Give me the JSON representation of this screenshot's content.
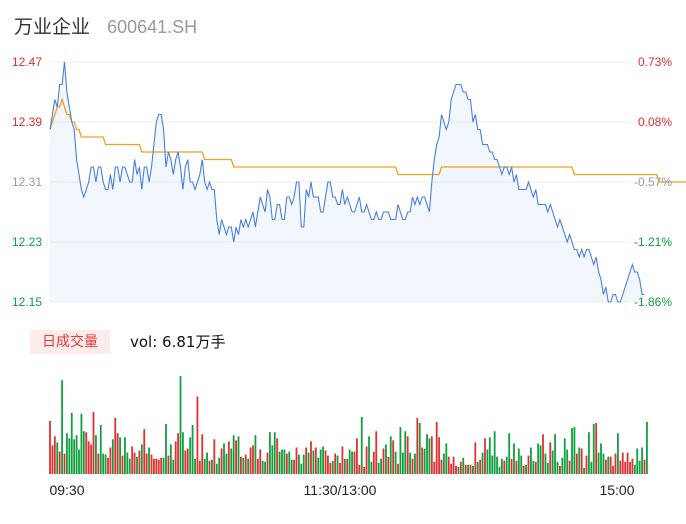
{
  "header": {
    "name": "万业企业",
    "code": "600641.SH"
  },
  "volume_panel": {
    "mode_label": "日成交量",
    "vol_label": "vol: 6.81万手"
  },
  "colors": {
    "price_line": "#4a7fe0",
    "avg_line": "#f0a020",
    "up": "#e03030",
    "down": "#10a040",
    "grid": "#eeeeee"
  },
  "chart_data": [
    {
      "type": "line",
      "title": "",
      "y_ticks": [
        "12.47",
        "12.39",
        "12.31",
        "12.23",
        "12.15"
      ],
      "pct_ticks": [
        "0.73%",
        "0.08%",
        "-0.57%",
        "-1.21%",
        "-1.86%"
      ],
      "x_ticks": [
        "09:30",
        "11:30/13:00",
        "15:00"
      ],
      "ylim": [
        12.15,
        12.47
      ],
      "series": [
        {
          "values": [
            12.38,
            12.4,
            12.42,
            12.41,
            12.44,
            12.44,
            12.47,
            12.43,
            12.41,
            12.39,
            12.38,
            12.34,
            12.32,
            12.3,
            12.29,
            12.3,
            12.31,
            12.33,
            12.33,
            12.31,
            12.33,
            12.33,
            12.31,
            12.3,
            12.3,
            12.32,
            12.3,
            12.33,
            12.33,
            12.31,
            12.33,
            12.33,
            12.32,
            12.31,
            12.31,
            12.34,
            12.32,
            12.33,
            12.3,
            12.33,
            12.33,
            12.31,
            12.33,
            12.36,
            12.39,
            12.4,
            12.4,
            12.38,
            12.33,
            12.35,
            12.34,
            12.32,
            12.34,
            12.35,
            12.33,
            12.3,
            12.33,
            12.34,
            12.31,
            12.31,
            12.3,
            12.31,
            12.32,
            12.34,
            12.31,
            12.3,
            12.31,
            12.3,
            12.3,
            12.26,
            12.24,
            12.26,
            12.25,
            12.24,
            12.25,
            12.25,
            12.23,
            12.25,
            12.24,
            12.26,
            12.25,
            12.26,
            12.25,
            12.26,
            12.27,
            12.25,
            12.27,
            12.29,
            12.28,
            12.27,
            12.3,
            12.29,
            12.26,
            12.26,
            12.28,
            12.28,
            12.26,
            12.26,
            12.29,
            12.29,
            12.28,
            12.29,
            12.31,
            12.31,
            12.25,
            12.25,
            12.3,
            12.29,
            12.31,
            12.29,
            12.29,
            12.29,
            12.27,
            12.27,
            12.29,
            12.31,
            12.31,
            12.29,
            12.29,
            12.28,
            12.28,
            12.3,
            12.28,
            12.29,
            12.28,
            12.27,
            12.27,
            12.28,
            12.29,
            12.27,
            12.27,
            12.28,
            12.27,
            12.26,
            12.26,
            12.27,
            12.26,
            12.26,
            12.27,
            12.27,
            12.27,
            12.26,
            12.26,
            12.26,
            12.28,
            12.27,
            12.26,
            12.26,
            12.27,
            12.27,
            12.29,
            12.28,
            12.29,
            12.28,
            12.29,
            12.29,
            12.28,
            12.27,
            12.31,
            12.34,
            12.36,
            12.37,
            12.4,
            12.39,
            12.38,
            12.39,
            12.42,
            12.43,
            12.44,
            12.44,
            12.44,
            12.43,
            12.43,
            12.42,
            12.42,
            12.39,
            12.4,
            12.38,
            12.38,
            12.36,
            12.36,
            12.36,
            12.35,
            12.35,
            12.34,
            12.34,
            12.33,
            12.32,
            12.33,
            12.33,
            12.32,
            12.33,
            12.31,
            12.32,
            12.3,
            12.3,
            12.3,
            12.3,
            12.31,
            12.3,
            12.29,
            12.3,
            12.28,
            12.28,
            12.28,
            12.28,
            12.27,
            12.28,
            12.27,
            12.26,
            12.25,
            12.26,
            12.25,
            12.24,
            12.23,
            12.24,
            12.23,
            12.22,
            12.22,
            12.21,
            12.22,
            12.21,
            12.22,
            12.22,
            12.21,
            12.2,
            12.21,
            12.19,
            12.18,
            12.16,
            12.17,
            12.15,
            12.15,
            12.16,
            12.16,
            12.15,
            12.15,
            12.16,
            12.17,
            12.18,
            12.19,
            12.2,
            12.19,
            12.19,
            12.18,
            12.16,
            12.16
          ]
        },
        {
          "values": [
            12.38,
            12.39,
            12.4,
            12.41,
            12.41,
            12.42,
            12.41,
            12.4,
            12.4,
            12.39,
            12.39,
            12.38,
            12.38,
            12.37,
            12.37,
            12.37,
            12.37,
            12.37,
            12.37,
            12.37,
            12.37,
            12.37,
            12.37,
            12.36,
            12.36,
            12.36,
            12.36,
            12.36,
            12.36,
            12.36,
            12.36,
            12.36,
            12.36,
            12.36,
            12.36,
            12.36,
            12.36,
            12.36,
            12.35,
            12.35,
            12.35,
            12.35,
            12.35,
            12.35,
            12.35,
            12.35,
            12.35,
            12.35,
            12.35,
            12.35,
            12.35,
            12.35,
            12.35,
            12.35,
            12.35,
            12.35,
            12.35,
            12.35,
            12.35,
            12.35,
            12.35,
            12.35,
            12.35,
            12.35,
            12.34,
            12.34,
            12.34,
            12.34,
            12.34,
            12.34,
            12.34,
            12.34,
            12.34,
            12.34,
            12.34,
            12.34,
            12.33,
            12.33,
            12.33,
            12.33,
            12.33,
            12.33,
            12.33,
            12.33,
            12.33,
            12.33,
            12.33,
            12.33,
            12.33,
            12.33,
            12.33,
            12.33,
            12.33,
            12.33,
            12.33,
            12.33,
            12.33,
            12.33,
            12.33,
            12.33,
            12.33,
            12.33,
            12.33,
            12.33,
            12.33,
            12.33,
            12.33,
            12.33,
            12.33,
            12.33,
            12.33,
            12.33,
            12.33,
            12.33,
            12.33,
            12.33,
            12.33,
            12.33,
            12.33,
            12.33,
            12.33,
            12.33,
            12.33,
            12.33,
            12.33,
            12.33,
            12.33,
            12.33,
            12.33,
            12.33,
            12.33,
            12.33,
            12.33,
            12.33,
            12.33,
            12.33,
            12.33,
            12.33,
            12.33,
            12.33,
            12.33,
            12.33,
            12.33,
            12.33,
            12.32,
            12.32,
            12.32,
            12.32,
            12.32,
            12.32,
            12.32,
            12.32,
            12.32,
            12.32,
            12.32,
            12.32,
            12.32,
            12.32,
            12.32,
            12.32,
            12.32,
            12.32,
            12.33,
            12.33,
            12.33,
            12.33,
            12.33,
            12.33,
            12.33,
            12.33,
            12.33,
            12.33,
            12.33,
            12.33,
            12.33,
            12.33,
            12.33,
            12.33,
            12.33,
            12.33,
            12.33,
            12.33,
            12.33,
            12.33,
            12.33,
            12.33,
            12.33,
            12.33,
            12.33,
            12.33,
            12.33,
            12.33,
            12.33,
            12.33,
            12.33,
            12.33,
            12.33,
            12.33,
            12.33,
            12.33,
            12.33,
            12.33,
            12.33,
            12.33,
            12.33,
            12.33,
            12.33,
            12.33,
            12.33,
            12.33,
            12.33,
            12.33,
            12.33,
            12.33,
            12.33,
            12.33,
            12.33,
            12.32,
            12.32,
            12.32,
            12.32,
            12.32,
            12.32,
            12.32,
            12.32,
            12.32,
            12.32,
            12.32,
            12.32,
            12.32,
            12.32,
            12.32,
            12.32,
            12.32,
            12.32,
            12.32,
            12.32,
            12.32,
            12.32,
            12.32,
            12.32,
            12.32,
            12.32,
            12.32,
            12.32,
            12.32,
            12.32,
            12.32,
            12.32,
            12.32,
            12.32,
            12.32,
            12.31,
            12.31,
            12.31,
            12.31,
            12.31,
            12.31,
            12.31,
            12.31,
            12.31,
            12.31,
            12.31,
            12.31,
            12.31,
            12.31,
            12.31,
            12.31
          ]
        }
      ]
    },
    {
      "type": "bar",
      "title": "",
      "ylim": [
        0,
        100
      ],
      "series": [
        {
          "values": [
            52,
            28,
            37,
            31,
            22,
            92,
            20,
            40,
            35,
            60,
            34,
            38,
            24,
            59,
            42,
            41,
            32,
            29,
            61,
            38,
            20,
            48,
            20,
            19,
            16,
            26,
            34,
            55,
            40,
            36,
            18,
            36,
            21,
            15,
            27,
            21,
            17,
            23,
            29,
            44,
            20,
            26,
            19,
            15,
            15,
            14,
            16,
            16,
            49,
            18,
            29,
            14,
            32,
            40,
            96,
            41,
            23,
            25,
            36,
            48,
            15,
            76,
            13,
            39,
            15,
            21,
            13,
            14,
            34,
            10,
            16,
            25,
            30,
            20,
            32,
            25,
            38,
            33,
            37,
            17,
            16,
            19,
            15,
            26,
            28,
            38,
            15,
            24,
            13,
            12,
            21,
            41,
            28,
            41,
            35,
            22,
            24,
            24,
            20,
            22,
            14,
            14,
            26,
            19,
            10,
            19,
            26,
            21,
            32,
            23,
            26,
            16,
            24,
            27,
            23,
            18,
            11,
            13,
            20,
            18,
            11,
            27,
            15,
            15,
            24,
            22,
            22,
            35,
            9,
            56,
            7,
            27,
            37,
            12,
            22,
            42,
            11,
            15,
            25,
            29,
            17,
            37,
            33,
            22,
            10,
            46,
            21,
            42,
            37,
            21,
            15,
            20,
            55,
            50,
            26,
            25,
            39,
            35,
            37,
            12,
            51,
            36,
            14,
            20,
            30,
            17,
            10,
            17,
            8,
            7,
            12,
            16,
            9,
            9,
            9,
            8,
            31,
            12,
            14,
            21,
            35,
            24,
            36,
            18,
            42,
            17,
            7,
            15,
            13,
            17,
            40,
            15,
            30,
            13,
            25,
            18,
            8,
            9,
            18,
            26,
            13,
            12,
            30,
            28,
            39,
            20,
            11,
            31,
            23,
            39,
            12,
            8,
            16,
            35,
            24,
            13,
            45,
            46,
            20,
            26,
            25,
            6,
            18,
            41,
            12,
            49,
            50,
            21,
            30,
            20,
            14,
            17,
            17,
            8,
            20,
            40,
            13,
            21,
            12,
            21,
            12,
            15,
            9,
            25,
            13,
            26,
            14,
            51
          ]
        }
      ]
    }
  ]
}
